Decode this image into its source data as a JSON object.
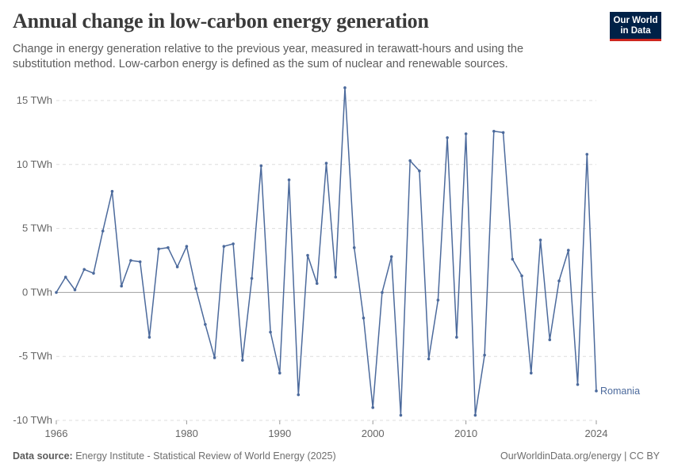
{
  "header": {
    "title": "Annual change in low-carbon energy generation",
    "subtitle": "Change in energy generation relative to the previous year, measured in terawatt-hours and using the substitution method. Low-carbon energy is defined as the sum of nuclear and renewable sources."
  },
  "logo": {
    "line1": "Our World",
    "line2": "in Data"
  },
  "footer": {
    "source_label": "Data source:",
    "source_text": "Energy Institute - Statistical Review of World Energy (2025)",
    "right_text": "OurWorldinData.org/energy | CC BY"
  },
  "colors": {
    "series": "#4c6a9c",
    "zero_line": "#a1a1a1",
    "grid": "#dddddd",
    "tick_text": "#666666",
    "logo_bg": "#002147",
    "logo_accent": "#ce261e"
  },
  "chart_data": {
    "type": "line",
    "ylim": [
      -10,
      16
    ],
    "xlim": [
      1966,
      2024
    ],
    "y_ticks": [
      {
        "value": 15,
        "label": "15 TWh"
      },
      {
        "value": 10,
        "label": "10 TWh"
      },
      {
        "value": 5,
        "label": "5 TWh"
      },
      {
        "value": 0,
        "label": "0 TWh"
      },
      {
        "value": -5,
        "label": "-5 TWh"
      },
      {
        "value": -10,
        "label": "-10 TWh"
      }
    ],
    "x_ticks": [
      {
        "value": 1966,
        "label": "1966"
      },
      {
        "value": 1980,
        "label": "1980"
      },
      {
        "value": 1990,
        "label": "1990"
      },
      {
        "value": 2000,
        "label": "2000"
      },
      {
        "value": 2010,
        "label": "2010"
      },
      {
        "value": 2024,
        "label": "2024"
      }
    ],
    "grid": "horizontal-dashed",
    "series": [
      {
        "name": "Romania",
        "x": [
          1966,
          1967,
          1968,
          1969,
          1970,
          1971,
          1972,
          1973,
          1974,
          1975,
          1976,
          1977,
          1978,
          1979,
          1980,
          1981,
          1982,
          1983,
          1984,
          1985,
          1986,
          1987,
          1988,
          1989,
          1990,
          1991,
          1992,
          1993,
          1994,
          1995,
          1996,
          1997,
          1998,
          1999,
          2000,
          2001,
          2002,
          2003,
          2004,
          2005,
          2006,
          2007,
          2008,
          2009,
          2010,
          2011,
          2012,
          2013,
          2014,
          2015,
          2016,
          2017,
          2018,
          2019,
          2020,
          2021,
          2022,
          2023,
          2024
        ],
        "values": [
          0.0,
          1.2,
          0.2,
          1.8,
          1.5,
          4.8,
          7.9,
          0.5,
          2.5,
          2.4,
          -3.5,
          3.4,
          3.5,
          2.0,
          3.6,
          0.3,
          -2.5,
          -5.1,
          3.6,
          3.8,
          -5.3,
          1.1,
          9.9,
          -3.1,
          -6.3,
          8.8,
          -8.0,
          2.9,
          0.7,
          10.1,
          1.2,
          16.0,
          3.5,
          -2.0,
          -9.0,
          0.0,
          2.8,
          -9.6,
          10.3,
          9.5,
          -5.2,
          -0.6,
          12.1,
          -3.5,
          12.4,
          -9.6,
          -4.9,
          12.6,
          12.5,
          2.6,
          1.3,
          -6.3,
          4.1,
          -3.7,
          0.9,
          3.3,
          -7.2,
          10.8,
          -7.7
        ]
      }
    ]
  }
}
